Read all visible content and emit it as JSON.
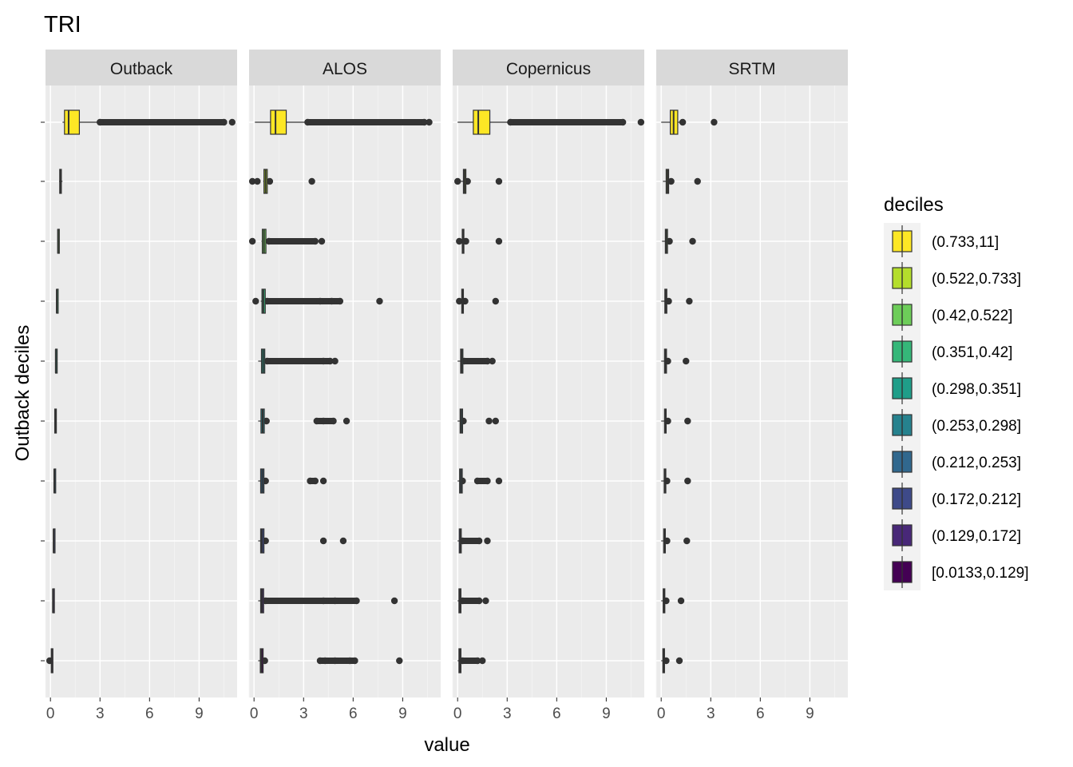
{
  "chart_data": {
    "type": "boxplot",
    "title": "TRI",
    "xlabel": "value",
    "ylabel": "Outback deciles",
    "xlim": [
      -0.3,
      11.3
    ],
    "x_ticks": [
      "0",
      "3",
      "6",
      "9"
    ],
    "x_tick_values": [
      0,
      3,
      6,
      9
    ],
    "categories": [
      "[0.0133,0.129]",
      "(0.129,0.172]",
      "(0.172,0.212]",
      "(0.212,0.253]",
      "(0.253,0.298]",
      "(0.298,0.351]",
      "(0.351,0.42]",
      "(0.42,0.522]",
      "(0.522,0.733]",
      "(0.733,11]"
    ],
    "colors": [
      "#440154",
      "#482878",
      "#3E4A89",
      "#31688E",
      "#26828E",
      "#1F9E89",
      "#35B779",
      "#6DCD59",
      "#B4DE2C",
      "#FDE725"
    ],
    "legend": {
      "title": "deciles",
      "position": "right",
      "entries": [
        "(0.733,11]",
        "(0.522,0.733]",
        "(0.42,0.522]",
        "(0.351,0.42]",
        "(0.298,0.351]",
        "(0.253,0.298]",
        "(0.212,0.253]",
        "(0.172,0.212]",
        "(0.129,0.172]",
        "[0.0133,0.129]"
      ]
    },
    "panels": [
      {
        "name": "Outback",
        "boxes": [
          {
            "min": 0.01,
            "q1": 0.05,
            "median": 0.08,
            "q3": 0.11,
            "max": 0.13,
            "outliers": [
              -0.05
            ]
          },
          {
            "min": 0.13,
            "q1": 0.14,
            "median": 0.15,
            "q3": 0.16,
            "max": 0.17,
            "outliers": []
          },
          {
            "min": 0.17,
            "q1": 0.18,
            "median": 0.19,
            "q3": 0.2,
            "max": 0.21,
            "outliers": []
          },
          {
            "min": 0.21,
            "q1": 0.22,
            "median": 0.23,
            "q3": 0.24,
            "max": 0.25,
            "outliers": []
          },
          {
            "min": 0.25,
            "q1": 0.26,
            "median": 0.28,
            "q3": 0.29,
            "max": 0.3,
            "outliers": []
          },
          {
            "min": 0.3,
            "q1": 0.31,
            "median": 0.32,
            "q3": 0.34,
            "max": 0.35,
            "outliers": []
          },
          {
            "min": 0.35,
            "q1": 0.37,
            "median": 0.38,
            "q3": 0.4,
            "max": 0.42,
            "outliers": []
          },
          {
            "min": 0.42,
            "q1": 0.44,
            "median": 0.46,
            "q3": 0.49,
            "max": 0.52,
            "outliers": []
          },
          {
            "min": 0.52,
            "q1": 0.56,
            "median": 0.6,
            "q3": 0.66,
            "max": 0.73,
            "outliers": []
          },
          {
            "min": 0.73,
            "q1": 0.85,
            "median": 1.1,
            "q3": 1.75,
            "max": 2.9,
            "outliers": [
              3,
              10.5,
              11
            ]
          }
        ]
      },
      {
        "name": "ALOS",
        "boxes": [
          {
            "min": 0.25,
            "q1": 0.38,
            "median": 0.45,
            "q3": 0.55,
            "max": 0.65,
            "outliers": [
              0.65,
              4,
              4.3,
              4.9,
              5.8,
              6.1,
              8.8
            ]
          },
          {
            "min": 0.25,
            "q1": 0.4,
            "median": 0.48,
            "q3": 0.58,
            "max": 0.65,
            "outliers": [
              0.7,
              4.2,
              4.9,
              6.2,
              8.5
            ]
          },
          {
            "min": 0.25,
            "q1": 0.4,
            "median": 0.48,
            "q3": 0.6,
            "max": 0.7,
            "outliers": [
              0.7,
              4.2,
              5.4
            ]
          },
          {
            "min": 0.25,
            "q1": 0.4,
            "median": 0.5,
            "q3": 0.6,
            "max": 0.7,
            "outliers": [
              0.7,
              3.4,
              3.7,
              4.2
            ]
          },
          {
            "min": 0.25,
            "q1": 0.42,
            "median": 0.52,
            "q3": 0.62,
            "max": 0.75,
            "outliers": [
              0.75,
              3.8,
              4.2,
              4.8,
              5.6
            ]
          },
          {
            "min": 0.25,
            "q1": 0.45,
            "median": 0.55,
            "q3": 0.65,
            "max": 0.75,
            "outliers": [
              0.8,
              4.2,
              4.6,
              4.9
            ]
          },
          {
            "min": 0.4,
            "q1": 0.48,
            "median": 0.56,
            "q3": 0.68,
            "max": 0.75,
            "outliers": [
              0.1,
              0.8,
              4,
              4.7,
              5.2,
              7.6
            ]
          },
          {
            "min": 0.45,
            "q1": 0.5,
            "median": 0.6,
            "q3": 0.72,
            "max": 0.8,
            "outliers": [
              -0.1,
              0.9,
              3.7,
              4.1
            ]
          },
          {
            "min": 0.55,
            "q1": 0.6,
            "median": 0.7,
            "q3": 0.8,
            "max": 0.85,
            "outliers": [
              -0.1,
              0.2,
              0.95,
              3.5
            ]
          },
          {
            "min": 0.05,
            "q1": 1.0,
            "median": 1.3,
            "q3": 1.95,
            "max": 3.2,
            "outliers": [
              3.25,
              10.3,
              10.6
            ]
          }
        ]
      },
      {
        "name": "Copernicus",
        "boxes": [
          {
            "min": 0.0,
            "q1": 0.08,
            "median": 0.15,
            "q3": 0.2,
            "max": 0.25,
            "outliers": [
              0.3,
              1.2,
              1.5
            ]
          },
          {
            "min": 0.0,
            "q1": 0.08,
            "median": 0.15,
            "q3": 0.2,
            "max": 0.25,
            "outliers": [
              0.3,
              1.3,
              1.7
            ]
          },
          {
            "min": 0.0,
            "q1": 0.1,
            "median": 0.18,
            "q3": 0.22,
            "max": 0.25,
            "outliers": [
              0.3,
              1.3,
              1.8
            ]
          },
          {
            "min": 0.0,
            "q1": 0.12,
            "median": 0.2,
            "q3": 0.28,
            "max": 0.3,
            "outliers": [
              0.3,
              1.2,
              1.8,
              2.5
            ]
          },
          {
            "min": 0.0,
            "q1": 0.15,
            "median": 0.22,
            "q3": 0.3,
            "max": 0.35,
            "outliers": [
              0.35,
              1.9,
              2.3
            ]
          },
          {
            "min": 0.0,
            "q1": 0.18,
            "median": 0.25,
            "q3": 0.32,
            "max": 0.38,
            "outliers": [
              0.4,
              1.8,
              2.1
            ]
          },
          {
            "min": 0.0,
            "q1": 0.25,
            "median": 0.3,
            "q3": 0.35,
            "max": 0.4,
            "outliers": [
              0.1,
              0.45,
              2.3
            ]
          },
          {
            "min": 0.0,
            "q1": 0.28,
            "median": 0.34,
            "q3": 0.38,
            "max": 0.45,
            "outliers": [
              0.1,
              0.5,
              2.5
            ]
          },
          {
            "min": 0.0,
            "q1": 0.35,
            "median": 0.42,
            "q3": 0.5,
            "max": 0.55,
            "outliers": [
              0.0,
              0.6,
              2.5
            ]
          },
          {
            "min": 0.0,
            "q1": 0.95,
            "median": 1.25,
            "q3": 1.95,
            "max": 3.1,
            "outliers": [
              3.2,
              10.0,
              11.1
            ]
          }
        ]
      },
      {
        "name": "SRTM",
        "boxes": [
          {
            "min": 0.0,
            "q1": 0.1,
            "median": 0.15,
            "q3": 0.2,
            "max": 0.25,
            "outliers": [
              0.3,
              1.1
            ]
          },
          {
            "min": 0.0,
            "q1": 0.12,
            "median": 0.18,
            "q3": 0.22,
            "max": 0.28,
            "outliers": [
              0.3,
              1.2
            ]
          },
          {
            "min": 0.0,
            "q1": 0.15,
            "median": 0.2,
            "q3": 0.25,
            "max": 0.3,
            "outliers": [
              0.35,
              1.55
            ]
          },
          {
            "min": 0.0,
            "q1": 0.18,
            "median": 0.22,
            "q3": 0.28,
            "max": 0.32,
            "outliers": [
              0.35,
              1.6
            ]
          },
          {
            "min": 0.0,
            "q1": 0.2,
            "median": 0.25,
            "q3": 0.3,
            "max": 0.35,
            "outliers": [
              0.4,
              1.6
            ]
          },
          {
            "min": 0.0,
            "q1": 0.2,
            "median": 0.26,
            "q3": 0.32,
            "max": 0.38,
            "outliers": [
              0.4,
              1.5
            ]
          },
          {
            "min": 0.0,
            "q1": 0.22,
            "median": 0.28,
            "q3": 0.34,
            "max": 0.4,
            "outliers": [
              0.45,
              1.7
            ]
          },
          {
            "min": 0.05,
            "q1": 0.25,
            "median": 0.3,
            "q3": 0.38,
            "max": 0.45,
            "outliers": [
              0.5,
              1.9
            ]
          },
          {
            "min": 0.1,
            "q1": 0.3,
            "median": 0.38,
            "q3": 0.45,
            "max": 0.52,
            "outliers": [
              0.6,
              2.2
            ]
          },
          {
            "min": 0.0,
            "q1": 0.55,
            "median": 0.75,
            "q3": 1.0,
            "max": 1.2,
            "outliers": [
              1.3,
              3.2
            ]
          }
        ]
      }
    ]
  }
}
